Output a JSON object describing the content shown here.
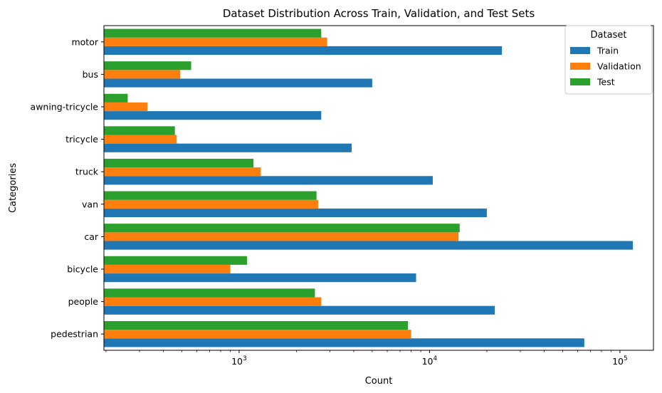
{
  "chart_data": {
    "type": "bar",
    "orientation": "horizontal",
    "title": "Dataset Distribution Across Train, Validation, and Test Sets",
    "xlabel": "Count",
    "ylabel": "Categories",
    "x_scale": "log",
    "xlim": [
      195,
      150000
    ],
    "x_ticks": [
      {
        "value": 1000,
        "base": "10",
        "exp": "3"
      },
      {
        "value": 10000,
        "base": "10",
        "exp": "4"
      },
      {
        "value": 100000,
        "base": "10",
        "exp": "5"
      }
    ],
    "grid": false,
    "categories": [
      "pedestrian",
      "people",
      "bicycle",
      "car",
      "van",
      "truck",
      "tricycle",
      "awning-tricycle",
      "bus",
      "motor"
    ],
    "series": [
      {
        "name": "Train",
        "color": "#1f77b4",
        "values": [
          65000,
          22000,
          8500,
          117000,
          20000,
          10400,
          3900,
          2700,
          5000,
          24000
        ]
      },
      {
        "name": "Validation",
        "color": "#ff7f0e",
        "values": [
          8000,
          2700,
          900,
          14200,
          2600,
          1300,
          470,
          330,
          490,
          2900
        ]
      },
      {
        "name": "Test",
        "color": "#2ca02c",
        "values": [
          7700,
          2500,
          1100,
          14400,
          2550,
          1190,
          460,
          260,
          560,
          2700
        ]
      }
    ],
    "legend": {
      "title": "Dataset",
      "placement": "top-right"
    }
  }
}
